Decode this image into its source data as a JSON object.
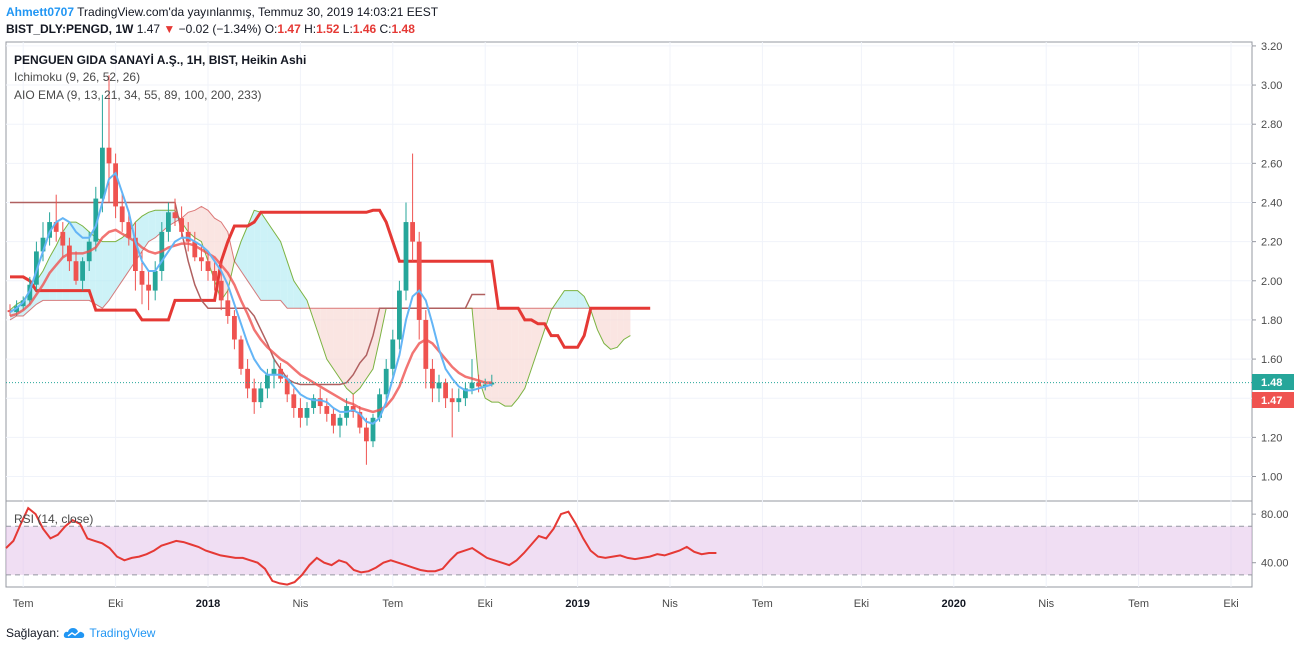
{
  "header": {
    "author": "Ahmett0707",
    "published": "TradingView.com'da yayınlanmış, Temmuz 30, 2019 14:03:21 EEST",
    "symbol": "BIST_DLY:PENGD, 1W",
    "last": "1.47",
    "arrow": "▼",
    "change": "−0.02 (−1.34%)",
    "o_label": "O:",
    "o_val": "1.47",
    "h_label": "H:",
    "h_val": "1.52",
    "l_label": "L:",
    "l_val": "1.46",
    "c_label": "C:",
    "c_val": "1.48"
  },
  "legend": {
    "title": "PENGUEN GIDA SANAYİ A.Ş., 1H, BIST, Heikin Ashi",
    "ichimoku": "Ichimoku (9, 26, 52, 26)",
    "ema": "AIO EMA (9, 13, 21, 34, 55, 89, 100, 200, 233)",
    "rsi": "RSI (14, close)"
  },
  "badges": {
    "green": "1.48",
    "red": "1.47",
    "green_color": "#26a69a",
    "red_color": "#ef5350"
  },
  "footer": {
    "label": "Sağlayan:",
    "brand": "TradingView",
    "logo_icon": "tradingview-cloud-icon"
  },
  "colors": {
    "up": "#26a69a",
    "down": "#ef5350",
    "ema_fast": "#64b5f6",
    "ema_slow": "#ef5350",
    "kijun": "#e53935",
    "lagging": "#b06060",
    "span_line": "#7cb342",
    "cloud_bull": "#b2ebf2",
    "cloud_bear": "#f8d7d2",
    "rsi_line": "#e53935",
    "rsi_band": "#e1bee7"
  },
  "chart_data": [
    {
      "type": "candlestick",
      "title": "PENGUEN GIDA SANAYİ A.Ş., 1H, BIST, Heikin Ashi",
      "y_ticks": [
        "3.20",
        "3.00",
        "2.80",
        "2.60",
        "2.40",
        "2.20",
        "2.00",
        "1.80",
        "1.60",
        "1.40",
        "1.20",
        "1.00"
      ],
      "ylim": [
        0.88,
        3.22
      ],
      "x_ticks": [
        {
          "label": "Tem",
          "bold": false
        },
        {
          "label": "Eki",
          "bold": false
        },
        {
          "label": "2018",
          "bold": true
        },
        {
          "label": "Nis",
          "bold": false
        },
        {
          "label": "Tem",
          "bold": false
        },
        {
          "label": "Eki",
          "bold": false
        },
        {
          "label": "2019",
          "bold": true
        },
        {
          "label": "Nis",
          "bold": false
        },
        {
          "label": "Tem",
          "bold": false
        },
        {
          "label": "Eki",
          "bold": false
        },
        {
          "label": "2020",
          "bold": true
        },
        {
          "label": "Nis",
          "bold": false
        },
        {
          "label": "Tem",
          "bold": false
        },
        {
          "label": "Eki",
          "bold": false
        }
      ],
      "x_tick_index": [
        2,
        16,
        30,
        44,
        58,
        72,
        86,
        100,
        114,
        129,
        143,
        157,
        171,
        185
      ],
      "last_price": 1.48,
      "candles": [
        [
          1.85,
          1.88,
          1.82,
          1.84
        ],
        [
          1.84,
          1.9,
          1.82,
          1.87
        ],
        [
          1.87,
          1.92,
          1.85,
          1.9
        ],
        [
          1.9,
          2.02,
          1.88,
          1.98
        ],
        [
          1.98,
          2.2,
          1.95,
          2.15
        ],
        [
          2.15,
          2.3,
          2.1,
          2.22
        ],
        [
          2.22,
          2.35,
          2.18,
          2.3
        ],
        [
          2.3,
          2.44,
          2.2,
          2.25
        ],
        [
          2.25,
          2.3,
          2.12,
          2.18
        ],
        [
          2.18,
          2.22,
          2.05,
          2.1
        ],
        [
          2.1,
          2.15,
          1.98,
          2.0
        ],
        [
          2.0,
          2.12,
          1.95,
          2.1
        ],
        [
          2.1,
          2.25,
          2.05,
          2.2
        ],
        [
          2.2,
          2.48,
          2.15,
          2.42
        ],
        [
          2.42,
          2.95,
          2.35,
          2.68
        ],
        [
          2.68,
          3.05,
          2.4,
          2.6
        ],
        [
          2.6,
          2.65,
          2.32,
          2.38
        ],
        [
          2.38,
          2.45,
          2.25,
          2.3
        ],
        [
          2.3,
          2.36,
          2.18,
          2.22
        ],
        [
          2.22,
          2.3,
          1.95,
          2.05
        ],
        [
          2.05,
          2.15,
          1.88,
          1.98
        ],
        [
          1.98,
          2.05,
          1.85,
          1.95
        ],
        [
          1.95,
          2.1,
          1.9,
          2.05
        ],
        [
          2.05,
          2.3,
          2.0,
          2.25
        ],
        [
          2.25,
          2.4,
          2.2,
          2.35
        ],
        [
          2.35,
          2.42,
          2.28,
          2.32
        ],
        [
          2.32,
          2.38,
          2.22,
          2.25
        ],
        [
          2.25,
          2.3,
          2.15,
          2.2
        ],
        [
          2.2,
          2.25,
          2.1,
          2.12
        ],
        [
          2.12,
          2.18,
          2.05,
          2.1
        ],
        [
          2.1,
          2.15,
          2.0,
          2.05
        ],
        [
          2.05,
          2.1,
          1.95,
          2.0
        ],
        [
          2.0,
          2.05,
          1.85,
          1.9
        ],
        [
          1.9,
          1.95,
          1.78,
          1.82
        ],
        [
          1.82,
          1.85,
          1.65,
          1.7
        ],
        [
          1.7,
          1.72,
          1.52,
          1.55
        ],
        [
          1.55,
          1.6,
          1.4,
          1.45
        ],
        [
          1.45,
          1.5,
          1.32,
          1.38
        ],
        [
          1.38,
          1.48,
          1.35,
          1.45
        ],
        [
          1.45,
          1.55,
          1.4,
          1.52
        ],
        [
          1.52,
          1.6,
          1.45,
          1.55
        ],
        [
          1.55,
          1.58,
          1.48,
          1.5
        ],
        [
          1.5,
          1.52,
          1.38,
          1.42
        ],
        [
          1.42,
          1.45,
          1.3,
          1.35
        ],
        [
          1.35,
          1.4,
          1.25,
          1.3
        ],
        [
          1.3,
          1.38,
          1.26,
          1.35
        ],
        [
          1.35,
          1.42,
          1.32,
          1.4
        ],
        [
          1.4,
          1.45,
          1.32,
          1.36
        ],
        [
          1.36,
          1.4,
          1.28,
          1.32
        ],
        [
          1.32,
          1.35,
          1.22,
          1.26
        ],
        [
          1.26,
          1.32,
          1.2,
          1.3
        ],
        [
          1.3,
          1.4,
          1.26,
          1.36
        ],
        [
          1.36,
          1.42,
          1.3,
          1.33
        ],
        [
          1.33,
          1.36,
          1.22,
          1.25
        ],
        [
          1.25,
          1.3,
          1.06,
          1.18
        ],
        [
          1.18,
          1.32,
          1.15,
          1.3
        ],
        [
          1.3,
          1.45,
          1.28,
          1.42
        ],
        [
          1.42,
          1.6,
          1.38,
          1.55
        ],
        [
          1.55,
          1.75,
          1.5,
          1.7
        ],
        [
          1.7,
          2.0,
          1.65,
          1.95
        ],
        [
          1.95,
          2.4,
          1.9,
          2.3
        ],
        [
          2.3,
          2.65,
          2.1,
          2.2
        ],
        [
          2.2,
          2.25,
          1.7,
          1.8
        ],
        [
          1.8,
          1.85,
          1.45,
          1.55
        ],
        [
          1.55,
          1.6,
          1.38,
          1.45
        ],
        [
          1.45,
          1.52,
          1.38,
          1.48
        ],
        [
          1.48,
          1.5,
          1.35,
          1.4
        ],
        [
          1.4,
          1.45,
          1.2,
          1.38
        ],
        [
          1.38,
          1.45,
          1.33,
          1.4
        ],
        [
          1.4,
          1.48,
          1.36,
          1.45
        ],
        [
          1.45,
          1.6,
          1.42,
          1.48
        ],
        [
          1.48,
          1.52,
          1.43,
          1.46
        ],
        [
          1.46,
          1.5,
          1.44,
          1.47
        ],
        [
          1.47,
          1.52,
          1.46,
          1.48
        ]
      ],
      "ema_fast": [
        1.84,
        1.86,
        1.89,
        1.95,
        2.05,
        2.15,
        2.25,
        2.3,
        2.32,
        2.3,
        2.25,
        2.22,
        2.22,
        2.28,
        2.4,
        2.52,
        2.55,
        2.45,
        2.35,
        2.2,
        2.1,
        2.05,
        2.05,
        2.1,
        2.15,
        2.2,
        2.22,
        2.22,
        2.2,
        2.18,
        2.15,
        2.1,
        2.05,
        1.98,
        1.88,
        1.78,
        1.68,
        1.6,
        1.55,
        1.52,
        1.52,
        1.52,
        1.5,
        1.46,
        1.42,
        1.4,
        1.39,
        1.39,
        1.38,
        1.35,
        1.33,
        1.33,
        1.34,
        1.32,
        1.28,
        1.27,
        1.3,
        1.38,
        1.5,
        1.62,
        1.8,
        1.92,
        1.95,
        1.9,
        1.78,
        1.65,
        1.55,
        1.5,
        1.46,
        1.44,
        1.44,
        1.45,
        1.46,
        1.47
      ],
      "ema_slow": [
        1.82,
        1.83,
        1.85,
        1.88,
        1.93,
        1.98,
        2.04,
        2.08,
        2.12,
        2.14,
        2.14,
        2.14,
        2.15,
        2.17,
        2.22,
        2.25,
        2.26,
        2.24,
        2.22,
        2.2,
        2.17,
        2.15,
        2.14,
        2.15,
        2.17,
        2.18,
        2.19,
        2.19,
        2.18,
        2.16,
        2.14,
        2.12,
        2.08,
        2.04,
        1.98,
        1.9,
        1.83,
        1.75,
        1.7,
        1.66,
        1.63,
        1.6,
        1.58,
        1.55,
        1.52,
        1.5,
        1.48,
        1.46,
        1.44,
        1.42,
        1.4,
        1.38,
        1.37,
        1.35,
        1.34,
        1.33,
        1.34,
        1.36,
        1.4,
        1.46,
        1.55,
        1.63,
        1.68,
        1.7,
        1.68,
        1.64,
        1.6,
        1.56,
        1.53,
        1.51,
        1.5,
        1.49,
        1.48,
        1.48
      ],
      "kijun": [
        2.02,
        2.02,
        2.02,
        2.0,
        1.95,
        1.95,
        1.95,
        1.95,
        1.95,
        1.95,
        1.95,
        1.95,
        1.95,
        1.85,
        1.85,
        1.85,
        1.85,
        1.85,
        1.85,
        1.85,
        1.8,
        1.8,
        1.8,
        1.8,
        1.8,
        1.9,
        1.9,
        1.9,
        1.9,
        1.9,
        1.9,
        1.9,
        2.1,
        2.2,
        2.28,
        2.28,
        2.28,
        2.3,
        2.35,
        2.35,
        2.35,
        2.35,
        2.35,
        2.35,
        2.35,
        2.35,
        2.35,
        2.35,
        2.35,
        2.35,
        2.35,
        2.35,
        2.35,
        2.35,
        2.35,
        2.36,
        2.36,
        2.3,
        2.2,
        2.1,
        2.1,
        2.1,
        2.1,
        2.1,
        2.1,
        2.1,
        2.1,
        2.1,
        2.1,
        2.1,
        2.1,
        2.1,
        2.1,
        2.1,
        1.86,
        1.86,
        1.86,
        1.86,
        1.8,
        1.8,
        1.78,
        1.78,
        1.72,
        1.72,
        1.66,
        1.66,
        1.66,
        1.72,
        1.86,
        1.86,
        1.86,
        1.86,
        1.86,
        1.86,
        1.86,
        1.86,
        1.86,
        1.86
      ],
      "lagging": [
        2.4,
        2.4,
        2.4,
        2.4,
        2.4,
        2.4,
        2.4,
        2.4,
        2.4,
        2.4,
        2.4,
        2.4,
        2.4,
        2.4,
        2.4,
        2.4,
        2.4,
        2.4,
        2.4,
        2.4,
        2.4,
        2.4,
        2.4,
        2.4,
        2.4,
        2.4,
        2.25,
        2.1,
        1.98,
        1.9,
        1.86,
        1.86,
        1.86,
        1.86,
        1.86,
        1.86,
        1.86,
        1.82,
        1.75,
        1.68,
        1.6,
        1.55,
        1.5,
        1.48,
        1.47,
        1.47,
        1.47,
        1.47,
        1.47,
        1.47,
        1.47,
        1.48,
        1.52,
        1.58,
        1.62,
        1.72,
        1.86,
        1.86,
        1.86,
        1.86,
        1.86,
        1.86,
        1.86,
        1.86,
        1.86,
        1.86,
        1.86,
        1.86,
        1.86,
        1.86,
        1.93,
        1.93,
        1.93
      ],
      "span_a": [
        1.85,
        1.88,
        1.9,
        1.95,
        2.0,
        2.05,
        2.12,
        2.18,
        2.25,
        2.3,
        2.3,
        2.28,
        2.25,
        2.22,
        2.2,
        2.2,
        2.2,
        2.22,
        2.25,
        2.3,
        2.33,
        2.35,
        2.36,
        2.36,
        2.36,
        2.36,
        2.3,
        2.25,
        2.22,
        2.2,
        2.1,
        2.0,
        1.9,
        1.95,
        2.1,
        2.2,
        2.28,
        2.36,
        2.35,
        2.3,
        2.25,
        2.2,
        2.1,
        2.0,
        1.95,
        1.9,
        1.8,
        1.7,
        1.6,
        1.55,
        1.5,
        1.45,
        1.42,
        1.45,
        1.5,
        1.55,
        1.7,
        1.86,
        1.86,
        1.86,
        1.86,
        1.86,
        1.86,
        1.86,
        1.86,
        1.86,
        1.86,
        1.86,
        1.86,
        1.86,
        1.86,
        1.5,
        1.4,
        1.38,
        1.38,
        1.36,
        1.36,
        1.4,
        1.45,
        1.55,
        1.65,
        1.75,
        1.85,
        1.9,
        1.95,
        1.95,
        1.95,
        1.92,
        1.85,
        1.75,
        1.68,
        1.65,
        1.66,
        1.7,
        1.72
      ],
      "span_b": [
        1.8,
        1.82,
        1.82,
        1.85,
        1.88,
        1.9,
        1.9,
        1.9,
        1.9,
        1.9,
        1.9,
        1.9,
        1.9,
        1.88,
        1.86,
        1.9,
        1.95,
        2.0,
        2.05,
        2.1,
        2.15,
        2.2,
        2.22,
        2.25,
        2.28,
        2.3,
        2.32,
        2.35,
        2.36,
        2.38,
        2.36,
        2.32,
        2.3,
        2.25,
        2.1,
        2.05,
        2.0,
        1.95,
        1.9,
        1.9,
        1.9,
        1.9,
        1.86,
        1.86,
        1.86,
        1.86,
        1.86,
        1.86,
        1.86,
        1.86,
        1.86,
        1.86,
        1.86,
        1.86,
        1.86,
        1.86,
        1.86,
        1.86,
        1.86,
        1.86,
        1.86,
        1.86,
        1.86,
        1.86,
        1.86,
        1.86,
        1.86,
        1.86,
        1.86,
        1.86,
        1.86,
        1.86,
        1.86,
        1.86,
        1.86,
        1.86,
        1.86,
        1.86,
        1.86,
        1.86,
        1.86,
        1.86,
        1.86,
        1.86,
        1.86,
        1.86,
        1.86,
        1.86,
        1.86,
        1.86,
        1.86,
        1.86,
        1.86,
        1.86,
        1.86
      ]
    },
    {
      "type": "line",
      "title": "RSI (14, close)",
      "y_ticks": [
        "80.00",
        "40.00"
      ],
      "ylim": [
        20,
        90
      ],
      "band": [
        70,
        30
      ],
      "values": [
        52,
        58,
        72,
        85,
        80,
        68,
        60,
        63,
        70,
        75,
        72,
        60,
        58,
        56,
        52,
        45,
        42,
        44,
        45,
        47,
        50,
        54,
        56,
        58,
        57,
        55,
        53,
        50,
        48,
        46,
        45,
        44,
        44,
        42,
        40,
        35,
        25,
        23,
        22,
        24,
        30,
        38,
        44,
        40,
        38,
        42,
        40,
        34,
        32,
        33,
        36,
        40,
        42,
        40,
        38,
        36,
        34,
        33,
        33,
        35,
        42,
        48,
        50,
        52,
        48,
        44,
        42,
        40,
        38,
        42,
        48,
        55,
        62,
        60,
        68,
        80,
        82,
        72,
        60,
        50,
        45,
        44,
        45,
        46,
        44,
        43,
        44,
        45,
        47,
        46,
        48,
        50,
        53,
        49,
        47,
        48,
        48
      ]
    }
  ]
}
